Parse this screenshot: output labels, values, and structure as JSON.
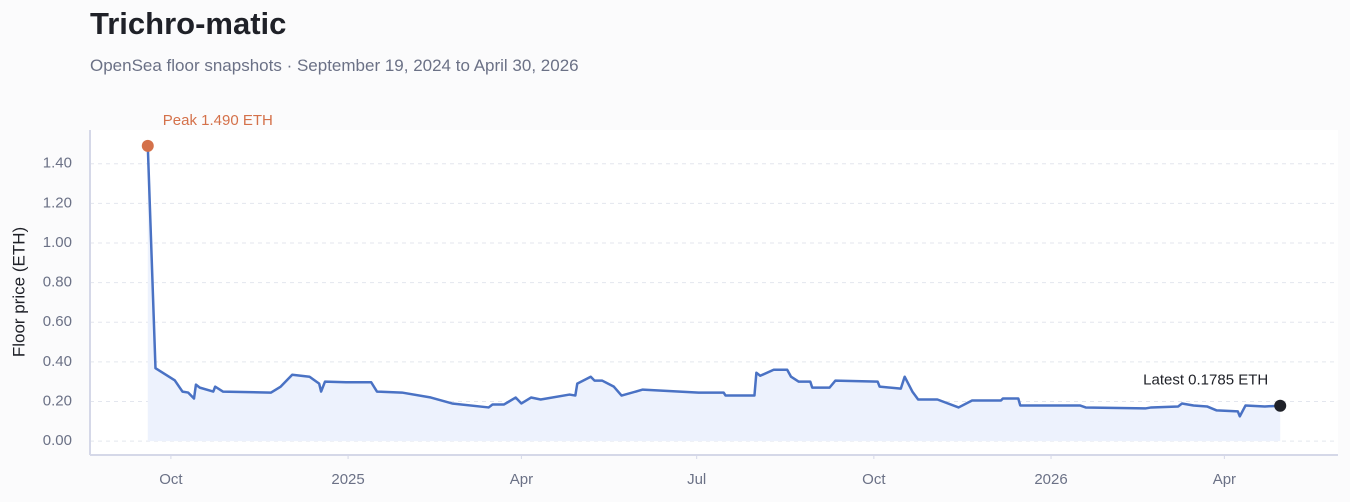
{
  "chart_data": {
    "type": "line",
    "title": "Trichro-matic",
    "subtitle": "OpenSea floor snapshots · September 19, 2024 to April 30, 2026",
    "ylabel": "Floor price (ETH)",
    "color": "#4a72c4",
    "area_color": "#edf2fd",
    "grid": true,
    "x": [
      "2024-09-19",
      "2024-09-23",
      "2024-10-03",
      "2024-10-07",
      "2024-10-10",
      "2024-10-13",
      "2024-10-14",
      "2024-10-16",
      "2024-10-23",
      "2024-10-24",
      "2024-10-28",
      "2024-11-22",
      "2024-11-27",
      "2024-12-03",
      "2024-12-12",
      "2024-12-17",
      "2024-12-18",
      "2024-12-20",
      "2024-12-31",
      "2025-01-13",
      "2025-01-16",
      "2025-01-29",
      "2025-02-13",
      "2025-02-24",
      "2025-03-15",
      "2025-03-17",
      "2025-03-23",
      "2025-03-29",
      "2025-04-01",
      "2025-04-06",
      "2025-04-11",
      "2025-04-26",
      "2025-04-29",
      "2025-04-30",
      "2025-05-07",
      "2025-05-09",
      "2025-05-13",
      "2025-05-19",
      "2025-05-23",
      "2025-06-03",
      "2025-07-02",
      "2025-07-15",
      "2025-07-16",
      "2025-07-31",
      "2025-08-01",
      "2025-08-03",
      "2025-08-10",
      "2025-08-17",
      "2025-08-19",
      "2025-08-23",
      "2025-08-29",
      "2025-08-30",
      "2025-09-08",
      "2025-09-11",
      "2025-10-03",
      "2025-10-04",
      "2025-10-15",
      "2025-10-17",
      "2025-10-21",
      "2025-10-24",
      "2025-11-03",
      "2025-11-14",
      "2025-11-21",
      "2025-12-06",
      "2025-12-07",
      "2025-12-15",
      "2025-12-16",
      "2026-01-16",
      "2026-01-19",
      "2026-02-19",
      "2026-02-22",
      "2026-03-08",
      "2026-03-10",
      "2026-03-16",
      "2026-03-23",
      "2026-03-28",
      "2026-04-08",
      "2026-04-09",
      "2026-04-12",
      "2026-04-22",
      "2026-04-30"
    ],
    "values": [
      1.49,
      0.368,
      0.307,
      0.25,
      0.245,
      0.215,
      0.285,
      0.27,
      0.25,
      0.275,
      0.25,
      0.245,
      0.275,
      0.335,
      0.325,
      0.29,
      0.25,
      0.3,
      0.297,
      0.297,
      0.25,
      0.245,
      0.22,
      0.19,
      0.17,
      0.185,
      0.185,
      0.22,
      0.19,
      0.22,
      0.21,
      0.235,
      0.23,
      0.29,
      0.325,
      0.305,
      0.305,
      0.275,
      0.23,
      0.26,
      0.245,
      0.245,
      0.23,
      0.23,
      0.345,
      0.33,
      0.36,
      0.36,
      0.325,
      0.3,
      0.3,
      0.27,
      0.27,
      0.305,
      0.3,
      0.275,
      0.265,
      0.325,
      0.25,
      0.21,
      0.21,
      0.17,
      0.205,
      0.205,
      0.215,
      0.215,
      0.18,
      0.18,
      0.17,
      0.165,
      0.17,
      0.175,
      0.19,
      0.18,
      0.175,
      0.155,
      0.15,
      0.125,
      0.18,
      0.175,
      0.1785
    ],
    "xlim": [
      "2024-08-20",
      "2026-05-30"
    ],
    "xticks": [
      {
        "value": "2024-10-01",
        "label": "Oct"
      },
      {
        "value": "2025-01-01",
        "label": "2025"
      },
      {
        "value": "2025-04-01",
        "label": "Apr"
      },
      {
        "value": "2025-07-01",
        "label": "Jul"
      },
      {
        "value": "2025-10-01",
        "label": "Oct"
      },
      {
        "value": "2026-01-01",
        "label": "2026"
      },
      {
        "value": "2026-04-01",
        "label": "Apr"
      }
    ],
    "ylim": [
      -0.07,
      1.57
    ],
    "yticks": [
      {
        "value": 0,
        "label": "0.00"
      },
      {
        "value": 0.2,
        "label": "0.20"
      },
      {
        "value": 0.4,
        "label": "0.40"
      },
      {
        "value": 0.6,
        "label": "0.60"
      },
      {
        "value": 0.8,
        "label": "0.80"
      },
      {
        "value": 1,
        "label": "1.00"
      },
      {
        "value": 1.2,
        "label": "1.20"
      },
      {
        "value": 1.4,
        "label": "1.40"
      }
    ],
    "annotations": [
      {
        "text": "Peak 1.490 ETH",
        "color": "#d4714a"
      },
      {
        "text": "Latest 0.1785 ETH",
        "color": "#1f2128"
      }
    ]
  }
}
